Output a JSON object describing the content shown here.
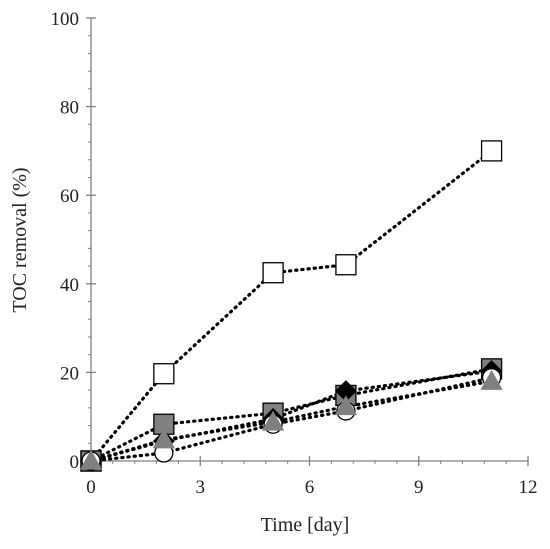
{
  "chart_data": {
    "type": "scatter",
    "xlabel": "Time [day]",
    "ylabel": "TOC removal (%)",
    "xlim": [
      0,
      12
    ],
    "ylim": [
      0,
      100
    ],
    "xticks": [
      0,
      3,
      6,
      9,
      12
    ],
    "yticks": [
      0,
      20,
      40,
      60,
      80,
      100
    ],
    "grid": false,
    "line_style": "dotted",
    "series": [
      {
        "marker": "square",
        "fill": "#ffffff",
        "stroke": "#000000",
        "x": [
          0,
          2,
          5,
          7,
          11
        ],
        "y": [
          0,
          19.7,
          42.5,
          44.3,
          70
        ]
      },
      {
        "marker": "square",
        "fill": "#808080",
        "stroke": "#000000",
        "x": [
          0,
          2,
          5,
          7,
          11
        ],
        "y": [
          0,
          8.3,
          10.8,
          14.8,
          20.8
        ]
      },
      {
        "marker": "diamond",
        "fill": "#000000",
        "stroke": "#000000",
        "x": [
          0,
          2,
          5,
          7,
          11
        ],
        "y": [
          0,
          4.5,
          9.5,
          15.8,
          20.3
        ]
      },
      {
        "marker": "circle",
        "fill": "#ffffff",
        "stroke": "#000000",
        "x": [
          0,
          2,
          5,
          7,
          11
        ],
        "y": [
          0,
          1.8,
          8.3,
          11.3,
          18.8
        ]
      },
      {
        "marker": "triangle",
        "fill": "#808080",
        "stroke": "#808080",
        "x": [
          0,
          2,
          5,
          7,
          11
        ],
        "y": [
          0,
          4.8,
          8.8,
          12.3,
          18.0
        ]
      }
    ]
  }
}
